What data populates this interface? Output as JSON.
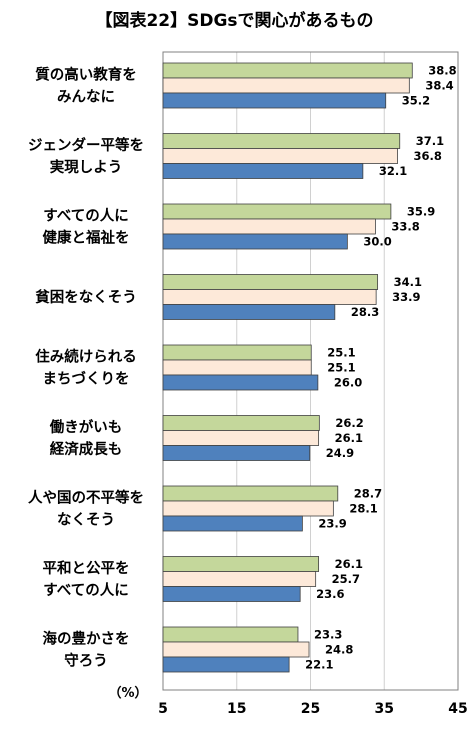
{
  "chart_data": {
    "type": "bar",
    "orientation": "horizontal",
    "title": "【図表22】SDGsで関心があるもの",
    "unit_label": "（%）",
    "categories": [
      [
        "質の高い教育を",
        "みんなに"
      ],
      [
        "ジェンダー平等を",
        "実現しよう"
      ],
      [
        "すべての人に",
        "健康と福祉を"
      ],
      [
        "貧困をなくそう"
      ],
      [
        "住み続けられる",
        "まちづくりを"
      ],
      [
        "働きがいも",
        "経済成長も"
      ],
      [
        "人や国の不平等を",
        "なくそう"
      ],
      [
        "平和と公平を",
        "すべての人に"
      ],
      [
        "海の豊かさを",
        "守ろう"
      ]
    ],
    "series": [
      {
        "color": "#c4d79b",
        "values": [
          38.8,
          37.1,
          35.9,
          34.1,
          25.1,
          26.2,
          28.7,
          26.1,
          23.3
        ]
      },
      {
        "color": "#fde9d9",
        "values": [
          38.4,
          36.8,
          33.8,
          33.9,
          25.1,
          26.1,
          28.1,
          25.7,
          24.8
        ]
      },
      {
        "color": "#4f81bd",
        "values": [
          35.2,
          32.1,
          30.0,
          28.3,
          26.0,
          24.9,
          23.9,
          23.6,
          22.1
        ]
      }
    ],
    "xlim": [
      5,
      45
    ],
    "xticks": [
      5,
      15,
      25,
      35,
      45
    ],
    "grid": true
  }
}
